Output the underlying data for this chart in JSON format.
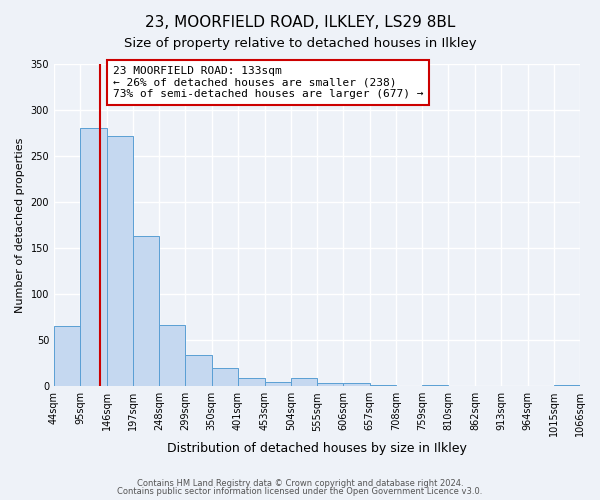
{
  "title1": "23, MOORFIELD ROAD, ILKLEY, LS29 8BL",
  "title2": "Size of property relative to detached houses in Ilkley",
  "xlabel": "Distribution of detached houses by size in Ilkley",
  "ylabel": "Number of detached properties",
  "bin_edges": [
    44,
    95,
    146,
    197,
    248,
    299,
    350,
    401,
    453,
    504,
    555,
    606,
    657,
    708,
    759,
    810,
    862,
    913,
    964,
    1015,
    1066
  ],
  "bin_labels": [
    "44sqm",
    "95sqm",
    "146sqm",
    "197sqm",
    "248sqm",
    "299sqm",
    "350sqm",
    "401sqm",
    "453sqm",
    "504sqm",
    "555sqm",
    "606sqm",
    "657sqm",
    "708sqm",
    "759sqm",
    "810sqm",
    "862sqm",
    "913sqm",
    "964sqm",
    "1015sqm",
    "1066sqm"
  ],
  "counts": [
    65,
    280,
    272,
    163,
    67,
    34,
    20,
    9,
    5,
    9,
    4,
    3,
    1,
    0,
    1,
    0,
    0,
    0,
    0,
    1
  ],
  "bar_color": "#c5d8f0",
  "bar_edge_color": "#5a9fd4",
  "red_line_x": 133,
  "annotation_line1": "23 MOORFIELD ROAD: 133sqm",
  "annotation_line2": "← 26% of detached houses are smaller (238)",
  "annotation_line3": "73% of semi-detached houses are larger (677) →",
  "annotation_box_color": "white",
  "annotation_box_edge": "#cc0000",
  "red_line_color": "#cc0000",
  "ylim": [
    0,
    350
  ],
  "yticks": [
    0,
    50,
    100,
    150,
    200,
    250,
    300,
    350
  ],
  "footer1": "Contains HM Land Registry data © Crown copyright and database right 2024.",
  "footer2": "Contains public sector information licensed under the Open Government Licence v3.0.",
  "background_color": "#eef2f8",
  "grid_color": "white",
  "title1_fontsize": 11,
  "title2_fontsize": 9.5,
  "xlabel_fontsize": 9,
  "ylabel_fontsize": 8,
  "tick_fontsize": 7,
  "annotation_fontsize": 8,
  "footer_fontsize": 6
}
